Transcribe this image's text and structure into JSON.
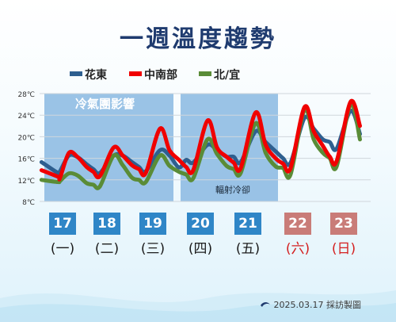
{
  "header": {
    "title": "一週溫度趨勢"
  },
  "colors": {
    "hualien_taitung": "#2e5f8f",
    "central_south": "#f00000",
    "north_yilan": "#5a8c37",
    "weekday": "#2f86c7",
    "weekend": "#c97c78",
    "shade": "#8ab9e2"
  },
  "legend": [
    {
      "label": "花東",
      "color": "#2e5f8f"
    },
    {
      "label": "中南部",
      "color": "#f00000"
    },
    {
      "label": "北/宜",
      "color": "#5a8c37"
    }
  ],
  "annotations": {
    "cold_air": "冷氣團影響",
    "radiative": "輻射冷卻"
  },
  "days": [
    {
      "date": "17",
      "weekday": "(一)",
      "weekend": false
    },
    {
      "date": "18",
      "weekday": "(二)",
      "weekend": false
    },
    {
      "date": "19",
      "weekday": "(三)",
      "weekend": false
    },
    {
      "date": "20",
      "weekday": "(四)",
      "weekend": false
    },
    {
      "date": "21",
      "weekday": "(五)",
      "weekend": false
    },
    {
      "date": "22",
      "weekday": "(六)",
      "weekend": true
    },
    {
      "date": "23",
      "weekday": "(日)",
      "weekend": true
    }
  ],
  "footer": {
    "credit": "2025.03.17 採訪製圖"
  },
  "chart_data": {
    "type": "line",
    "y_unit": "℃",
    "ylim": [
      8,
      28
    ],
    "yticks": [
      "8℃",
      "12℃",
      "16℃",
      "20℃",
      "24℃",
      "28℃"
    ],
    "grid": true,
    "shaded_periods": [
      {
        "label": "冷氣團影響",
        "from_day": 0,
        "to_day": 3
      },
      {
        "label": "輻射冷卻",
        "from_day": 3,
        "to_day": 5
      }
    ],
    "series": [
      {
        "name": "花東",
        "color": "#2e5f8f",
        "x": [
          -0.35,
          0.0,
          0.05,
          0.25,
          0.45,
          0.65,
          0.8,
          0.95,
          1.25,
          1.45,
          1.65,
          1.8,
          1.95,
          2.25,
          2.45,
          2.65,
          2.8,
          2.95,
          3.25,
          3.45,
          3.65,
          3.8,
          3.95,
          4.25,
          4.45,
          4.65,
          4.8,
          4.95,
          5.25,
          5.45,
          5.65,
          5.8,
          5.95,
          6.25,
          6.45
        ],
        "y": [
          15.3,
          13.3,
          13.6,
          16.5,
          16.2,
          14.9,
          14.0,
          13.3,
          16.5,
          16.5,
          15.3,
          14.4,
          13.6,
          17.5,
          16.5,
          14.3,
          15.7,
          15.2,
          18.5,
          17.5,
          16.3,
          16.3,
          15.3,
          21.0,
          19.0,
          17.3,
          16.0,
          15.2,
          23.5,
          21.5,
          19.5,
          19.0,
          17.8,
          24.8,
          20.5
        ]
      },
      {
        "name": "中南部",
        "color": "#f00000",
        "x": [
          -0.35,
          0.0,
          0.05,
          0.25,
          0.45,
          0.65,
          0.8,
          0.95,
          1.25,
          1.45,
          1.65,
          1.8,
          1.95,
          2.25,
          2.45,
          2.65,
          2.8,
          2.95,
          3.25,
          3.45,
          3.65,
          3.8,
          3.95,
          4.25,
          4.45,
          4.65,
          4.8,
          4.95,
          5.25,
          5.45,
          5.65,
          5.8,
          5.95,
          6.25,
          6.45
        ],
        "y": [
          13.8,
          12.6,
          12.4,
          17.0,
          16.2,
          14.4,
          13.5,
          12.7,
          18.0,
          16.5,
          14.7,
          14.0,
          13.3,
          21.5,
          17.5,
          15.7,
          14.4,
          13.8,
          23.0,
          18.0,
          16.3,
          15.2,
          14.2,
          24.5,
          18.5,
          16.0,
          15.0,
          14.2,
          25.5,
          21.0,
          18.3,
          16.3,
          15.5,
          26.5,
          22.0
        ]
      },
      {
        "name": "北/宜",
        "color": "#5a8c37",
        "x": [
          -0.35,
          0.0,
          0.05,
          0.25,
          0.45,
          0.65,
          0.8,
          0.95,
          1.25,
          1.45,
          1.65,
          1.8,
          1.95,
          2.25,
          2.45,
          2.65,
          2.8,
          2.95,
          3.25,
          3.45,
          3.65,
          3.8,
          3.95,
          4.25,
          4.45,
          4.65,
          4.8,
          4.95,
          5.25,
          5.45,
          5.65,
          5.8,
          5.95,
          6.25,
          6.45
        ],
        "y": [
          12.0,
          11.6,
          11.8,
          13.2,
          12.8,
          11.4,
          11.1,
          10.8,
          16.5,
          14.7,
          12.4,
          12.0,
          11.6,
          16.5,
          14.6,
          13.5,
          13.0,
          12.3,
          19.5,
          16.8,
          14.6,
          14.0,
          13.3,
          22.5,
          17.0,
          14.5,
          14.2,
          13.0,
          25.0,
          19.5,
          17.0,
          16.0,
          14.5,
          26.0,
          19.5
        ]
      }
    ]
  }
}
